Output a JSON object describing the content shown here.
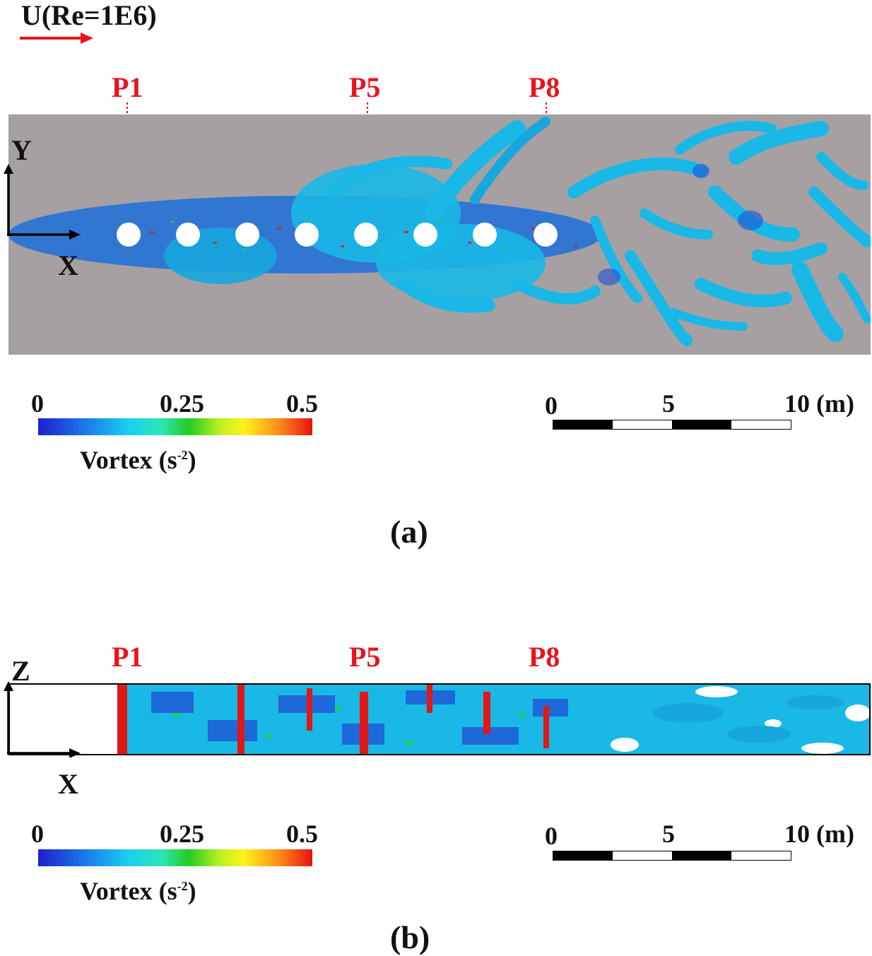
{
  "flow": {
    "label": "U(Re=1E6)",
    "arrow_color": "#e8141b"
  },
  "panel_a": {
    "positions": [
      "P1",
      "P5",
      "P8"
    ],
    "axes": {
      "vertical": "Y",
      "horizontal": "X"
    },
    "background": "#a6a0a3",
    "colorbar": {
      "ticks": [
        "0",
        "0.25",
        "0.5"
      ],
      "label": "Vortex (s",
      "label_sup": "-2",
      "label_end": ")"
    },
    "scalebar": {
      "ticks": [
        "0",
        "5",
        "10 (m)"
      ]
    },
    "caption": "(a)"
  },
  "panel_b": {
    "positions": [
      "P1",
      "P5",
      "P8"
    ],
    "axes": {
      "vertical": "Z",
      "horizontal": "X"
    },
    "colorbar": {
      "ticks": [
        "0",
        "0.25",
        "0.5"
      ],
      "label": "Vortex (s",
      "label_sup": "-2",
      "label_end": ")"
    },
    "scalebar": {
      "ticks": [
        "0",
        "5",
        "10 (m)"
      ]
    },
    "caption": "(b)"
  },
  "colors": {
    "label_red": "#e8141b",
    "vortex_cyan": "#19b8e6",
    "vortex_blue": "#1f4fd6",
    "vortex_red": "#e01818",
    "vortex_green": "#22cc55"
  }
}
